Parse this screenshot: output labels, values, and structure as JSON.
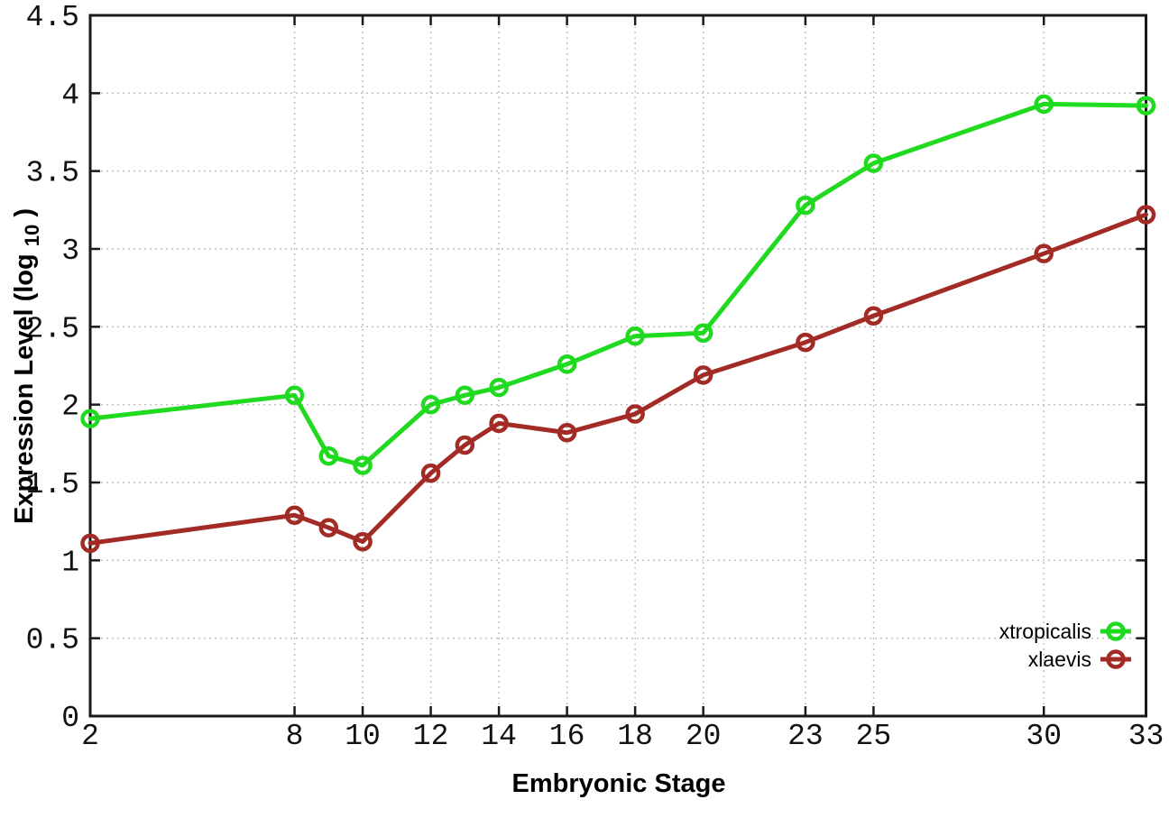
{
  "figure": {
    "background_color": "#ffffff",
    "border_color": "#1a1a1a",
    "grid_color": "#bdbdbd",
    "tick_label_color": "#111111"
  },
  "chart_data": {
    "type": "line",
    "title": "",
    "xlabel": "Embryonic Stage",
    "ylabel": "Expression Level (log10)",
    "ylabel_parts": {
      "main": "Expression Level (log",
      "sub": "10",
      "end": ")"
    },
    "xlim": [
      2,
      33
    ],
    "ylim": [
      0,
      4.5
    ],
    "grid": true,
    "marker": "open-circle",
    "legend_position": "bottom-right",
    "x_ticks": [
      2,
      8,
      10,
      12,
      14,
      16,
      18,
      20,
      23,
      25,
      30,
      33
    ],
    "x_tick_labels": [
      "2",
      "8",
      "10",
      "12",
      "14",
      "16",
      "18",
      "20",
      "23",
      "25",
      "30",
      "33"
    ],
    "y_ticks": [
      0,
      0.5,
      1,
      1.5,
      2,
      2.5,
      3,
      3.5,
      4,
      4.5
    ],
    "y_tick_labels": [
      "0",
      "0.5",
      "1",
      "1.5",
      "2",
      "2.5",
      "3",
      "3.5",
      "4",
      "4.5"
    ],
    "x": [
      2,
      8,
      9,
      10,
      12,
      13,
      14,
      16,
      18,
      20,
      23,
      25,
      30,
      33
    ],
    "series": [
      {
        "name": "xtropicalis",
        "color": "#20da20",
        "values": [
          1.91,
          2.06,
          1.67,
          1.61,
          2.0,
          2.06,
          2.11,
          2.26,
          2.44,
          2.46,
          3.28,
          3.55,
          3.93,
          3.92
        ]
      },
      {
        "name": "xlaevis",
        "color": "#a32b26",
        "values": [
          1.11,
          1.29,
          1.21,
          1.12,
          1.56,
          1.74,
          1.88,
          1.82,
          1.94,
          2.19,
          2.4,
          2.57,
          2.97,
          3.22
        ]
      }
    ]
  }
}
